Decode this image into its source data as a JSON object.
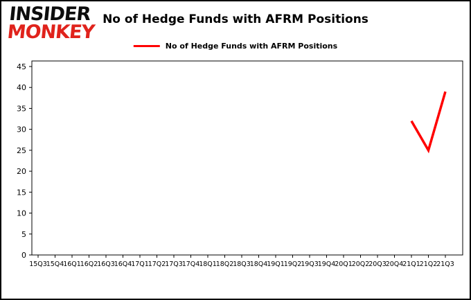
{
  "logo": {
    "line1": "INSIDER",
    "line2": "MONKEY",
    "accent_color": "#e0231c"
  },
  "header": {
    "title": "No of Hedge Funds with AFRM Positions"
  },
  "legend": {
    "label": "No of Hedge Funds with AFRM Positions",
    "line_color": "#ff0000"
  },
  "chart_data": {
    "type": "line",
    "title": "No of Hedge Funds with AFRM Positions",
    "xlabel": "",
    "ylabel": "",
    "ylim": [
      0,
      45
    ],
    "yticks": [
      0,
      5,
      10,
      15,
      20,
      25,
      30,
      35,
      40,
      45
    ],
    "grid": false,
    "legend_position": "top-center",
    "categories": [
      "15Q3",
      "15Q4",
      "16Q1",
      "16Q2",
      "16Q3",
      "16Q4",
      "17Q1",
      "17Q2",
      "17Q3",
      "17Q4",
      "18Q1",
      "18Q2",
      "18Q3",
      "18Q4",
      "19Q1",
      "19Q2",
      "19Q3",
      "19Q4",
      "20Q1",
      "20Q2",
      "20Q3",
      "20Q4",
      "21Q1",
      "21Q2",
      "21Q3"
    ],
    "series": [
      {
        "name": "No of Hedge Funds with AFRM Positions",
        "color": "#ff0000",
        "values": [
          null,
          null,
          null,
          null,
          null,
          null,
          null,
          null,
          null,
          null,
          null,
          null,
          null,
          null,
          null,
          null,
          null,
          null,
          null,
          null,
          null,
          null,
          32,
          25,
          39
        ]
      }
    ]
  }
}
